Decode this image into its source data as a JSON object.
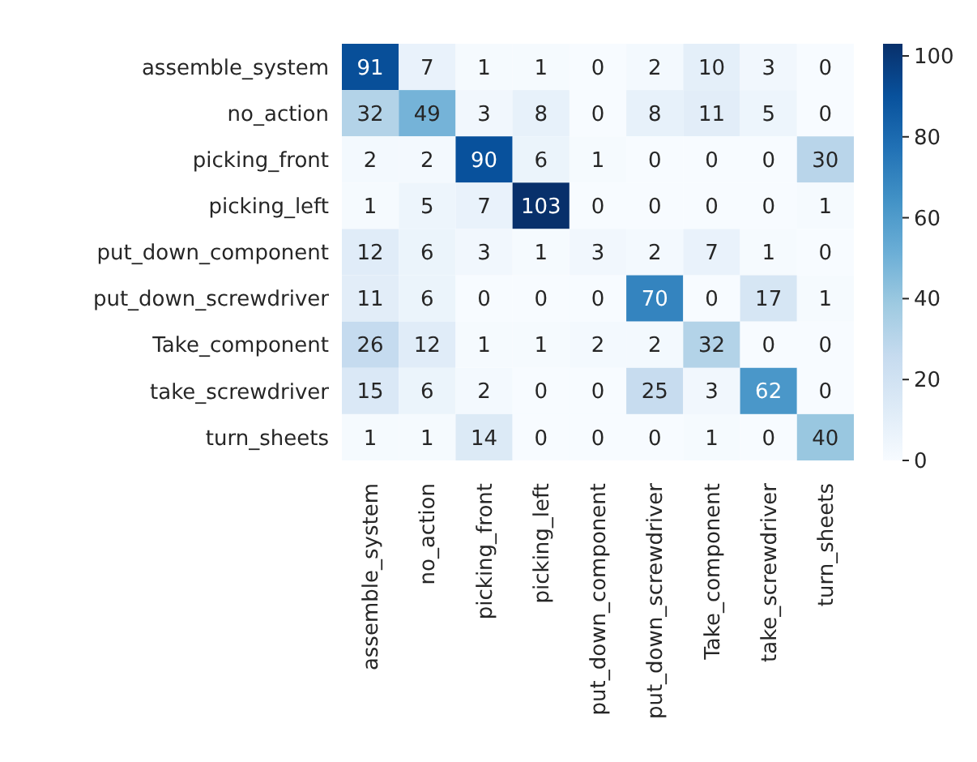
{
  "chart_data": {
    "type": "heatmap",
    "categories": [
      "assemble_system",
      "no_action",
      "picking_front",
      "picking_left",
      "put_down_component",
      "put_down_screwdriver",
      "Take_component",
      "take_screwdriver",
      "turn_sheets"
    ],
    "y_categories": [
      "assemble_system",
      "no_action",
      "picking_front",
      "picking_left",
      "put_down_component",
      "put_down_screwdriver",
      "Take_component",
      "take_screwdriver",
      "turn_sheets"
    ],
    "cells": [
      [
        91,
        7,
        1,
        1,
        0,
        2,
        10,
        3,
        0
      ],
      [
        32,
        49,
        3,
        8,
        0,
        8,
        11,
        5,
        0
      ],
      [
        2,
        2,
        90,
        6,
        1,
        0,
        0,
        0,
        30
      ],
      [
        1,
        5,
        7,
        103,
        0,
        0,
        0,
        0,
        1
      ],
      [
        12,
        6,
        3,
        1,
        3,
        2,
        7,
        1,
        0
      ],
      [
        11,
        6,
        0,
        0,
        0,
        70,
        0,
        17,
        1
      ],
      [
        26,
        12,
        1,
        1,
        2,
        2,
        32,
        0,
        0
      ],
      [
        15,
        6,
        2,
        0,
        0,
        25,
        3,
        62,
        0
      ],
      [
        1,
        1,
        14,
        0,
        0,
        0,
        1,
        0,
        40
      ]
    ],
    "data_labels": true,
    "clim": [
      0,
      103
    ],
    "cticks": [
      0,
      20,
      40,
      60,
      80,
      100
    ]
  }
}
